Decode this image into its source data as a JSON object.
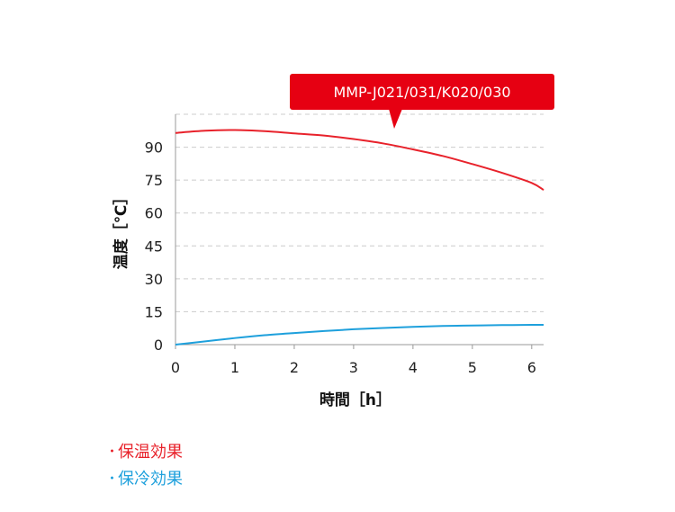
{
  "chart_data": {
    "type": "line",
    "callout": "MMP-J021/031/K020/030",
    "xlabel": "時間［h］",
    "ylabel": "温度［℃］",
    "x_ticks": [
      "0",
      "1",
      "2",
      "3",
      "4",
      "5",
      "6"
    ],
    "y_ticks": [
      "0",
      "15",
      "30",
      "45",
      "60",
      "75",
      "90"
    ],
    "xlim": [
      0,
      6.2
    ],
    "ylim": [
      0,
      105
    ],
    "grid": true,
    "series": [
      {
        "name": "保温効果",
        "color": "#e8222b",
        "x": [
          0,
          0.5,
          1,
          1.5,
          2,
          2.5,
          3,
          3.5,
          4,
          4.5,
          5,
          5.5,
          6,
          6.2
        ],
        "y": [
          96.5,
          97.5,
          97.8,
          97.3,
          96.3,
          95.3,
          93.7,
          91.7,
          89,
          86,
          82.3,
          78.3,
          73.7,
          70.5
        ]
      },
      {
        "name": "保冷効果",
        "color": "#1ea0dc",
        "x": [
          0,
          0.5,
          1,
          1.5,
          2,
          2.5,
          3,
          3.5,
          4,
          4.5,
          5,
          5.5,
          6,
          6.2
        ],
        "y": [
          0,
          1.5,
          3,
          4.3,
          5.3,
          6.2,
          7,
          7.6,
          8.1,
          8.5,
          8.7,
          8.9,
          9,
          9
        ]
      }
    ]
  },
  "legend": [
    {
      "bullet": "･",
      "label": "保温効果",
      "color": "#e8222b"
    },
    {
      "bullet": "･",
      "label": "保冷効果",
      "color": "#1ea0dc"
    }
  ]
}
